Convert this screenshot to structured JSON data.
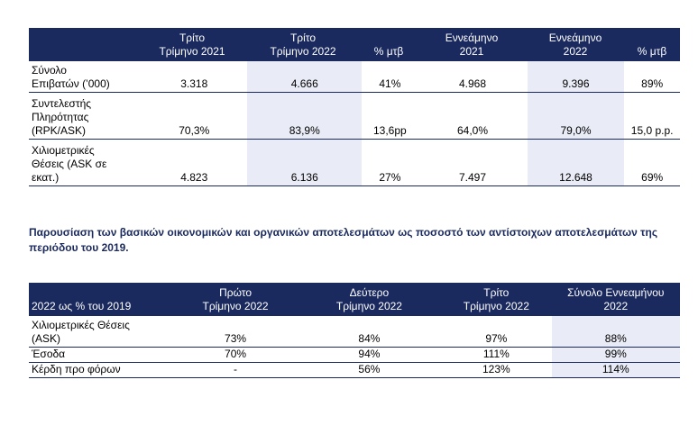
{
  "table1": {
    "headers": [
      "",
      "Τρίτο\nΤρίμηνο 2021",
      "Τρίτο\nΤρίμηνο 2022",
      "% μτβ",
      "Εννεάμηνο\n2021",
      "Εννεάμηνο\n2022",
      "% μτβ"
    ],
    "rows": [
      {
        "label": "Σύνολο\nΕπιβατών (’000)",
        "values": [
          "3.318",
          "4.666",
          "41%",
          "4.968",
          "9.396",
          "89%"
        ]
      },
      {
        "label": "Συντελεστής\nΠληρότητας\n(RPK/ASK)",
        "values": [
          "70,3%",
          "83,9%",
          "13,6pp",
          "64,0%",
          "79,0%",
          "15,0 p.p."
        ]
      },
      {
        "label": "Χιλιομετρικές\nΘέσεις (ASK σε\nεκατ.)",
        "values": [
          "4.823",
          "6.136",
          "27%",
          "7.497",
          "12.648",
          "69%"
        ]
      }
    ]
  },
  "caption": "Παρουσίαση των βασικών οικονομικών και οργανικών αποτελεσμάτων ως ποσοστό των αντίστοιχων αποτελεσμάτων της περιόδου του 2019.",
  "table2": {
    "headers": [
      "2022 ως % του 2019",
      "Πρώτο\nΤρίμηνο 2022",
      "Δεύτερο\nΤρίμηνο 2022",
      "Τρίτο\nΤρίμηνο 2022",
      "Σύνολο Εννεαμήνου\n2022"
    ],
    "rows": [
      {
        "label": "Χιλιομετρικές Θέσεις\n(ASK)",
        "values": [
          "73%",
          "84%",
          "97%",
          "88%"
        ]
      },
      {
        "label": "Έσοδα",
        "values": [
          "70%",
          "94%",
          "111%",
          "99%"
        ]
      },
      {
        "label": "Κέρδη προ φόρων",
        "values": [
          "-",
          "56%",
          "123%",
          "114%"
        ]
      }
    ]
  },
  "colors": {
    "header_bg": "#1b2a5e",
    "shade": "#e9ebf6"
  }
}
